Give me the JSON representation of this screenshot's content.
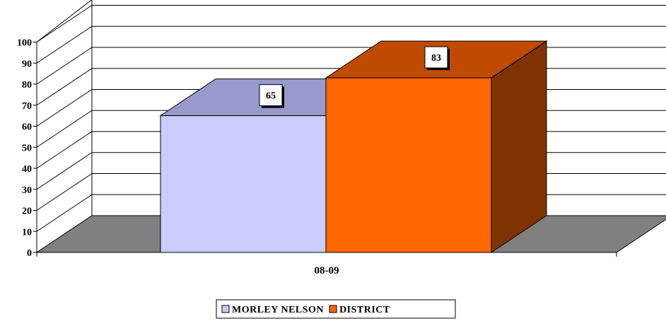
{
  "chart_data": {
    "type": "bar",
    "title": "",
    "xlabel": "",
    "ylabel": "",
    "categories": [
      "08-09"
    ],
    "series": [
      {
        "name": "MORLEY NELSON",
        "values": [
          65
        ],
        "color": "#CCCCFF",
        "top_color": "#9999CC"
      },
      {
        "name": "DISTRICT",
        "values": [
          83
        ],
        "color": "#FF6600",
        "top_color": "#C04A00",
        "side_color": "#7F3300"
      }
    ],
    "ylim": [
      0,
      100
    ],
    "yticks": [
      0,
      10,
      20,
      30,
      40,
      50,
      60,
      70,
      80,
      90,
      100
    ],
    "grid": true,
    "legend": "bottom",
    "floor_color": "#808080",
    "style": "3d"
  }
}
